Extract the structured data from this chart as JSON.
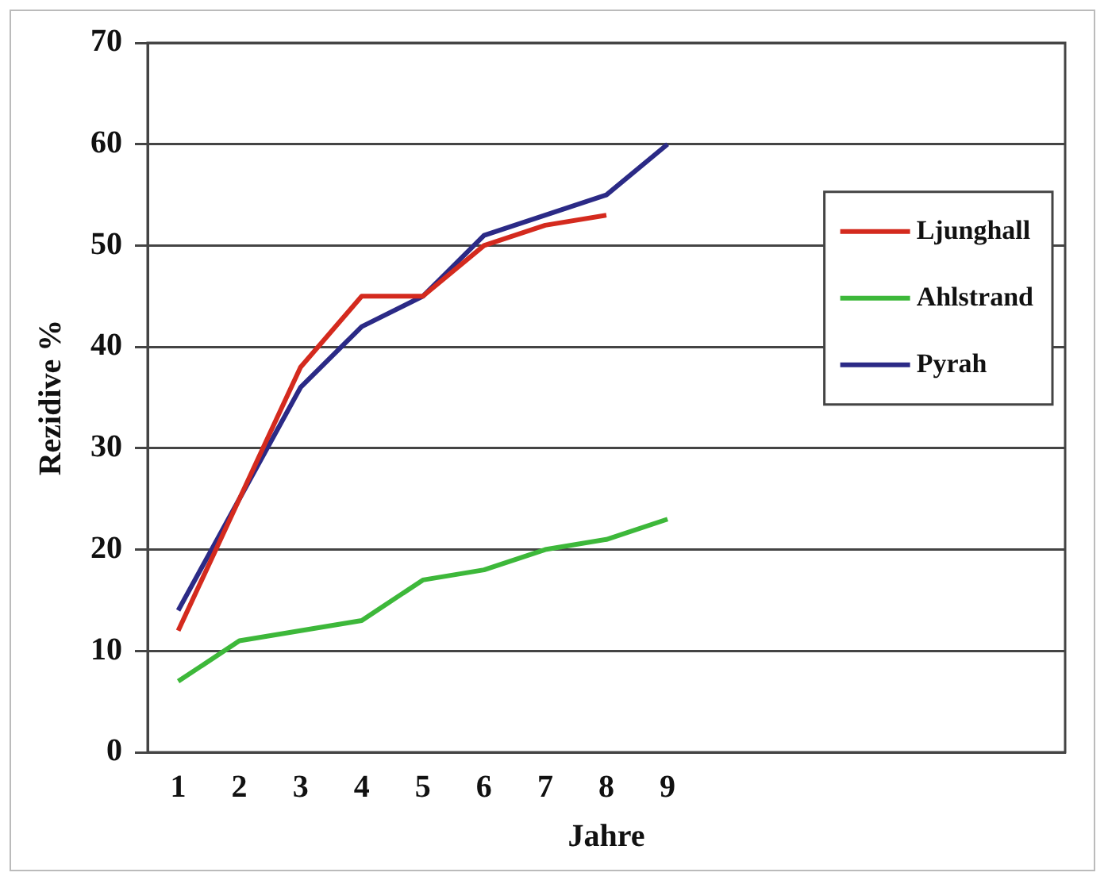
{
  "chart_data": {
    "type": "line",
    "xlabel": "Jahre",
    "ylabel": "Rezidive %",
    "categories": [
      "1",
      "2",
      "3",
      "4",
      "5",
      "6",
      "7",
      "8",
      "9",
      null,
      null,
      null,
      null,
      null,
      null
    ],
    "series": [
      {
        "name": "Ljunghall",
        "color": "#d42a1e",
        "values": [
          12,
          25,
          38,
          45,
          45,
          50,
          52,
          53,
          null,
          null,
          null,
          null,
          null,
          null,
          null
        ]
      },
      {
        "name": "Ahlstrand",
        "color": "#3db83a",
        "values": [
          7,
          11,
          12,
          13,
          17,
          18,
          20,
          21,
          23,
          null,
          null,
          null,
          null,
          null,
          null
        ]
      },
      {
        "name": "Pyrah",
        "color": "#2b2a86",
        "values": [
          14,
          25,
          36,
          42,
          45,
          51,
          53,
          55,
          60,
          null,
          null,
          null,
          null,
          null,
          null
        ]
      }
    ],
    "ylim": [
      0,
      70
    ],
    "yticks": [
      0,
      10,
      20,
      30,
      40,
      50,
      60,
      70
    ],
    "grid": "y",
    "legend": "right"
  }
}
